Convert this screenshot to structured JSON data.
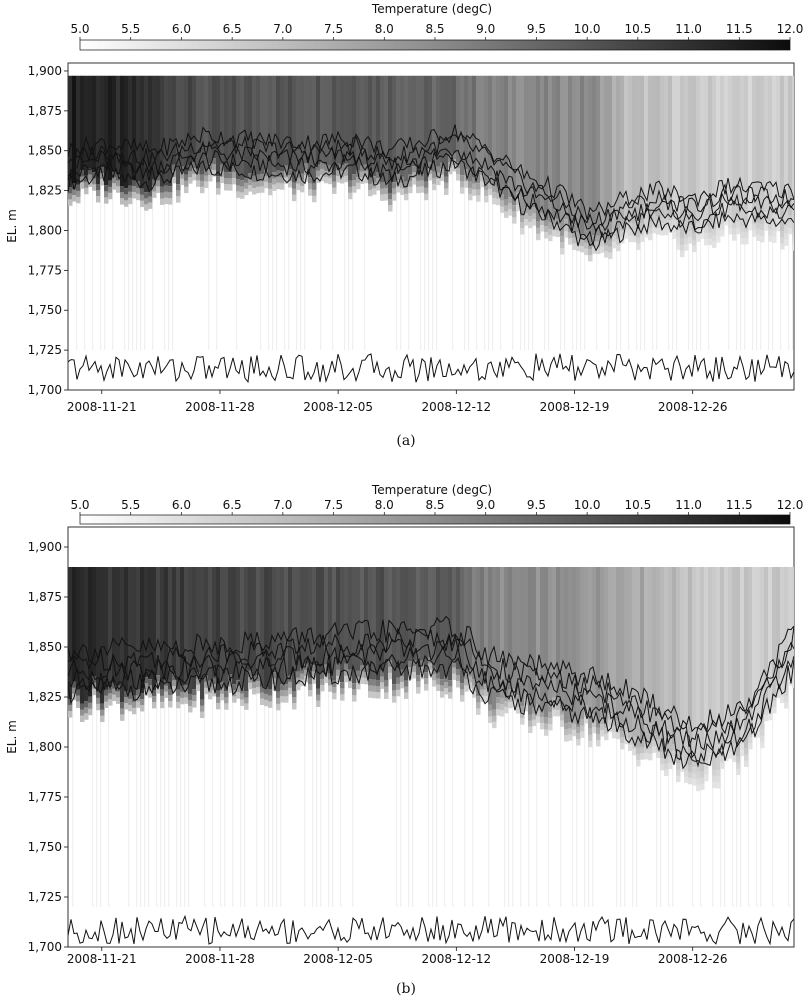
{
  "colors": {
    "ramp_low": "#ffffff",
    "ramp_mid": "#8c8c8c",
    "ramp_high": "#0c0c0c",
    "contour": "#111111"
  },
  "chart_data": [
    {
      "type": "heatmap",
      "panel_label": "(a)",
      "colorbar": {
        "title": "Temperature (degC)",
        "range": [
          5.0,
          12.0
        ],
        "ticks": [
          "5.0",
          "5.5",
          "6.0",
          "6.5",
          "7.0",
          "7.5",
          "8.0",
          "8.5",
          "9.0",
          "9.5",
          "10.0",
          "10.5",
          "11.0",
          "11.5",
          "12.0"
        ]
      },
      "ylabel": "EL. m",
      "ylim": [
        1700,
        1905
      ],
      "yticks": [
        "1,700",
        "1,725",
        "1,750",
        "1,775",
        "1,800",
        "1,825",
        "1,850",
        "1,875",
        "1,900"
      ],
      "xlim": [
        "2008-11-19",
        "2009-01-01"
      ],
      "xticks": [
        "2008-11-21",
        "2008-11-28",
        "2008-12-05",
        "2008-12-12",
        "2008-12-19",
        "2008-12-26"
      ],
      "surface_elevation_m": 1897,
      "columns": {
        "dates": [
          "2008-11-19",
          "2008-11-21",
          "2008-11-24",
          "2008-11-27",
          "2008-11-30",
          "2008-12-03",
          "2008-12-06",
          "2008-12-08",
          "2008-12-10",
          "2008-12-12",
          "2008-12-14",
          "2008-12-16",
          "2008-12-18",
          "2008-12-20",
          "2008-12-22",
          "2008-12-24",
          "2008-12-26",
          "2008-12-28",
          "2009-01-01"
        ],
        "surface_temp_degC": [
          11.5,
          11.3,
          10.9,
          10.0,
          10.0,
          10.0,
          10.1,
          9.9,
          9.6,
          9.5,
          8.7,
          8.6,
          8.5,
          8.6,
          7.0,
          6.8,
          6.6,
          6.5,
          6.5
        ],
        "cold_boundary_m": [
          1830,
          1835,
          1830,
          1840,
          1837,
          1835,
          1838,
          1830,
          1836,
          1842,
          1830,
          1815,
          1805,
          1790,
          1800,
          1805,
          1800,
          1808,
          1805
        ]
      }
    },
    {
      "type": "heatmap",
      "panel_label": "(b)",
      "colorbar": {
        "title": "Temperature (degC)",
        "range": [
          5.0,
          12.0
        ],
        "ticks": [
          "5.0",
          "5.5",
          "6.0",
          "6.5",
          "7.0",
          "7.5",
          "8.0",
          "8.5",
          "9.0",
          "9.5",
          "10.0",
          "10.5",
          "11.0",
          "11.5",
          "12.0"
        ]
      },
      "ylabel": "EL. m",
      "ylim": [
        1700,
        1910
      ],
      "yticks": [
        "1,700",
        "1,725",
        "1,750",
        "1,775",
        "1,800",
        "1,825",
        "1,850",
        "1,875",
        "1,900"
      ],
      "xlim": [
        "2008-11-19",
        "2009-01-01"
      ],
      "xticks": [
        "2008-11-21",
        "2008-11-28",
        "2008-12-05",
        "2008-12-12",
        "2008-12-19",
        "2008-12-26"
      ],
      "surface_elevation_m": 1890,
      "columns": {
        "dates": [
          "2008-11-19",
          "2008-11-22",
          "2008-11-26",
          "2008-11-30",
          "2008-12-04",
          "2008-12-08",
          "2008-12-12",
          "2008-12-14",
          "2008-12-17",
          "2008-12-20",
          "2008-12-23",
          "2008-12-26",
          "2008-12-29",
          "2009-01-01"
        ],
        "surface_temp_degC": [
          11.3,
          10.9,
          10.6,
          10.3,
          10.1,
          10.0,
          9.7,
          8.6,
          8.4,
          8.2,
          7.6,
          6.8,
          6.6,
          6.6
        ],
        "cold_boundary_m": [
          1828,
          1829,
          1830,
          1833,
          1836,
          1838,
          1840,
          1825,
          1820,
          1815,
          1805,
          1790,
          1800,
          1840
        ]
      }
    }
  ]
}
